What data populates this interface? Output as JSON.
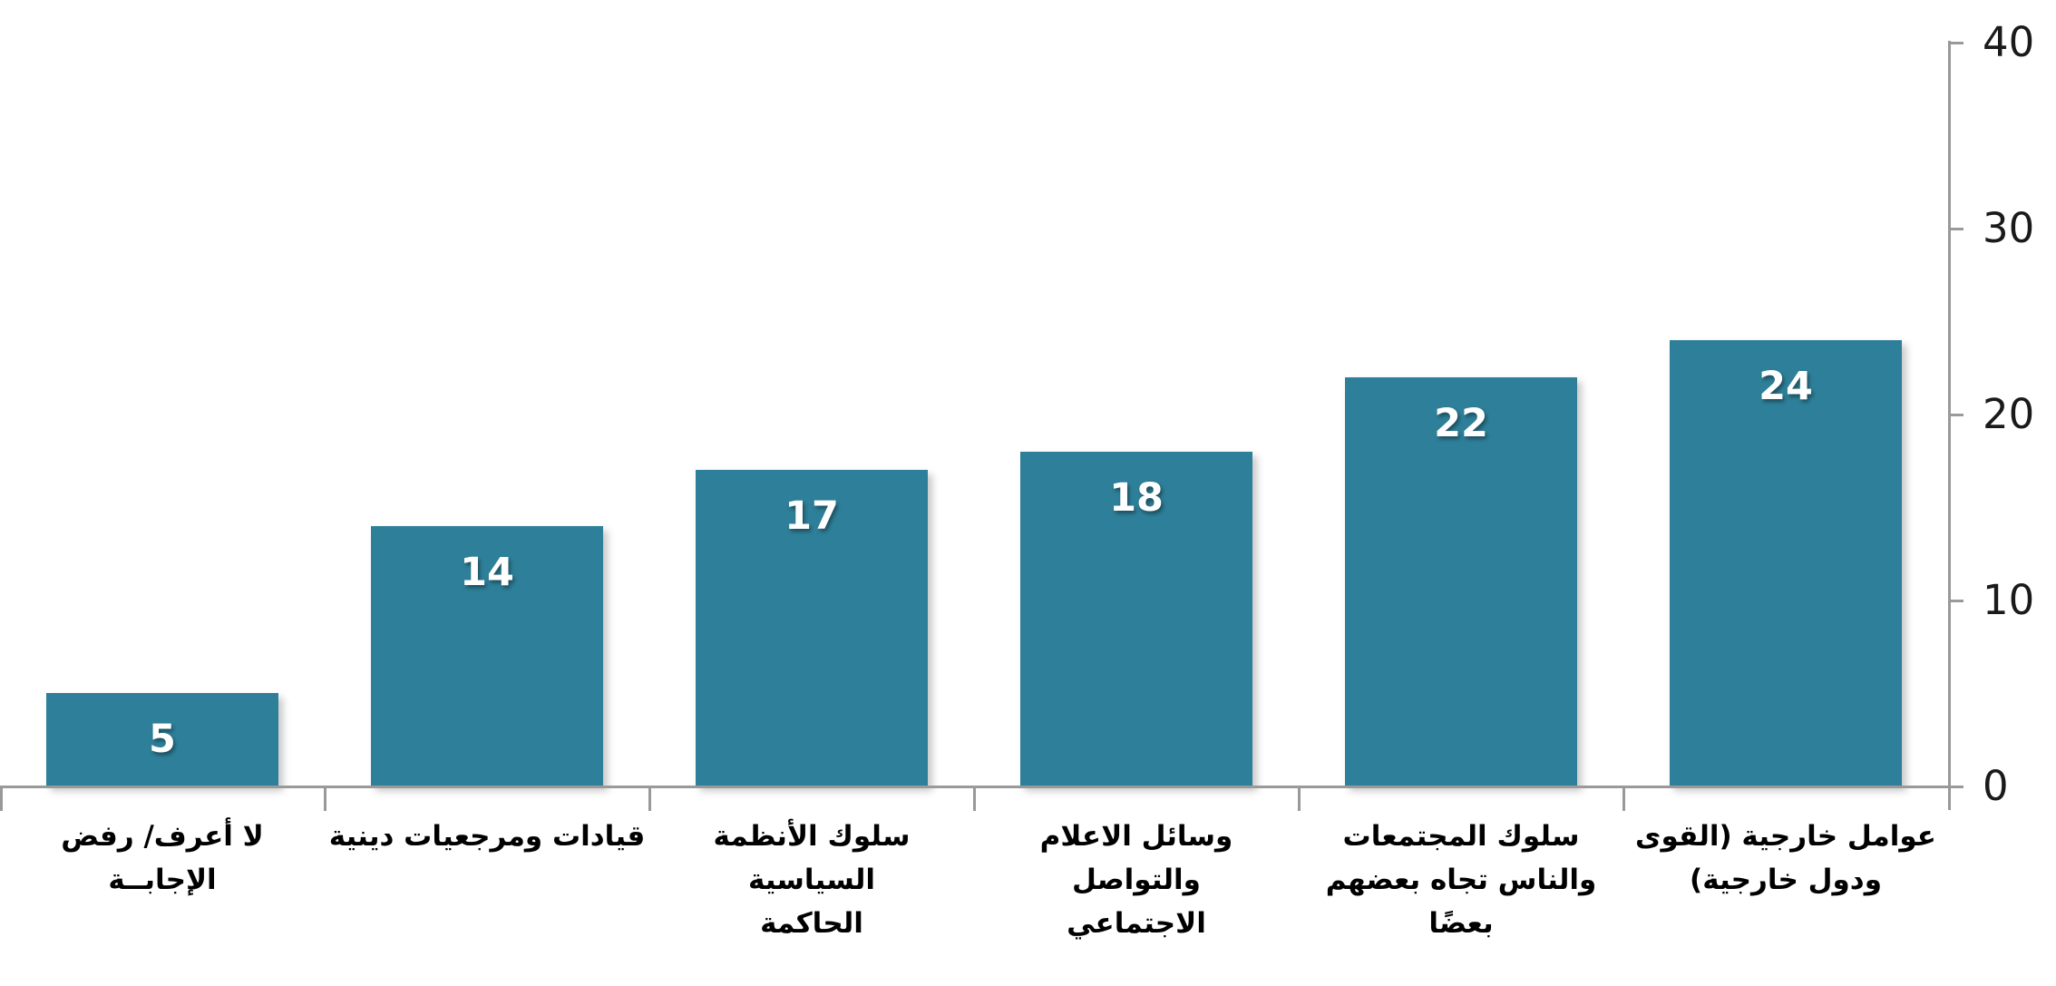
{
  "chart_data": {
    "type": "bar",
    "title": "",
    "xlabel": "",
    "ylabel": "",
    "categories": [
      "لا أعرف/ رفض\nالإجابــة",
      "قيادات ومرجعيات دينية",
      "سلوك الأنظمة السياسية\nالحاكمة",
      "وسائل الاعلام والتواصل\nالاجتماعي",
      "سلوك المجتمعات\nوالناس تجاه بعضهم\nبعضًا",
      "عوامل خارجية (القوى\nودول خارجية)"
    ],
    "values": [
      5,
      14,
      17,
      18,
      22,
      24
    ],
    "value_labels": [
      "5",
      "14",
      "17",
      "18",
      "22",
      "24"
    ],
    "ylim": [
      0,
      40
    ],
    "yticks": [
      0,
      10,
      20,
      30,
      40
    ],
    "y_axis_position": "right",
    "grid": false,
    "legend": false,
    "categories_visual_order": "left-to-right",
    "text_direction": "rtl",
    "colors": {
      "bar_fill": "#2E7F99",
      "value_label": "#FFFFFF",
      "axis_line": "#999999",
      "tick_label": "#1A1A1A",
      "category_label": "#000000",
      "background": "#FFFFFF"
    }
  }
}
